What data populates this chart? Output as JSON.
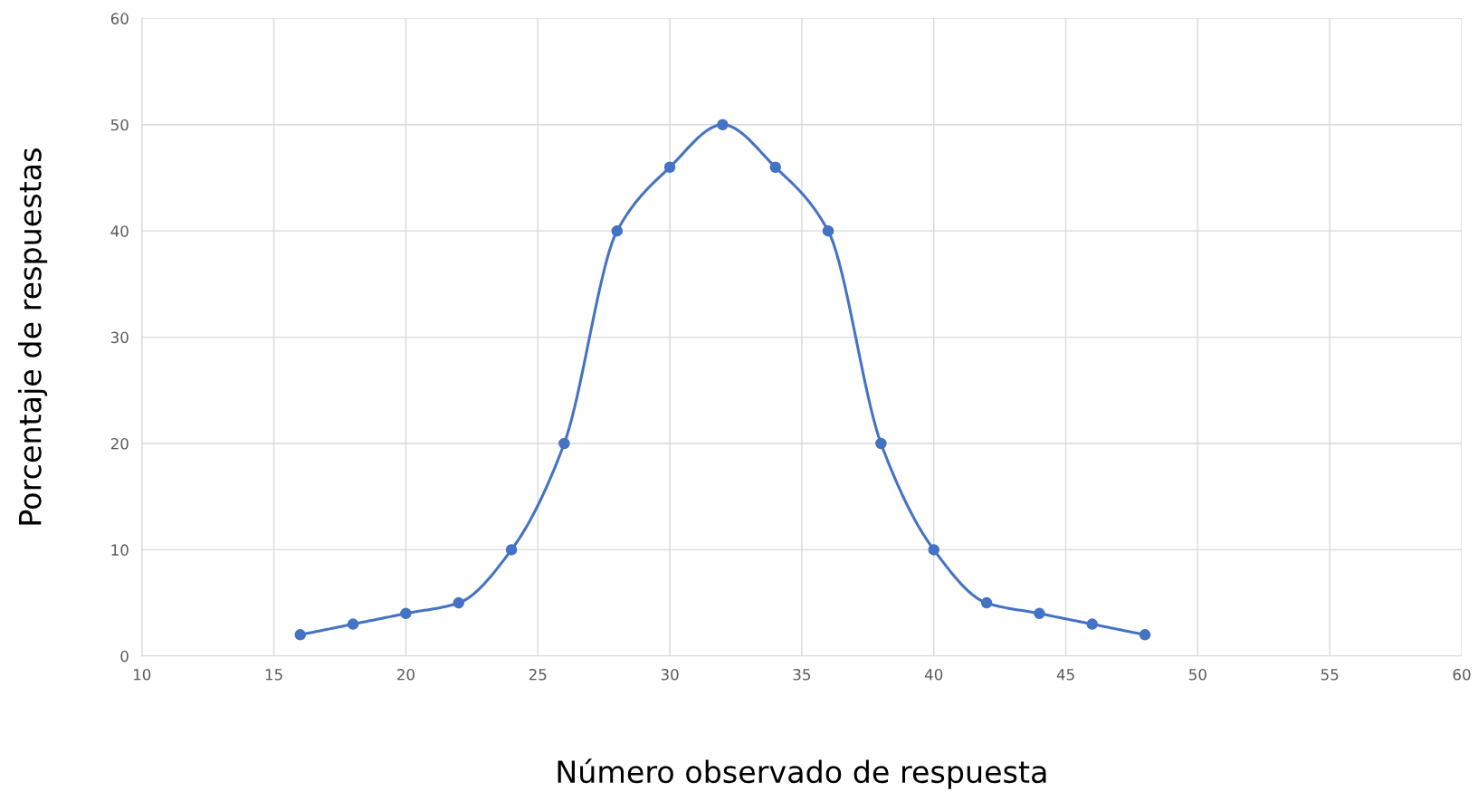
{
  "chart_data": {
    "type": "line",
    "xlabel": "Número observado de respuesta",
    "ylabel": "Porcentaje de respuestas",
    "x": [
      16,
      18,
      20,
      22,
      24,
      26,
      28,
      30,
      32,
      34,
      36,
      38,
      40,
      42,
      44,
      46,
      48
    ],
    "series": [
      {
        "color": "#4472c4",
        "values": [
          2,
          3,
          4,
          5,
          10,
          20,
          40,
          46,
          50,
          46,
          40,
          20,
          10,
          5,
          4,
          3,
          2
        ]
      }
    ],
    "xlim": [
      10,
      60
    ],
    "xticks": [
      10,
      15,
      20,
      25,
      30,
      35,
      40,
      45,
      50,
      55,
      60
    ],
    "ylim": [
      0,
      60
    ],
    "yticks": [
      0,
      10,
      20,
      30,
      40,
      50,
      60
    ],
    "grid": true,
    "marker": "circle",
    "line_style": "solid"
  }
}
